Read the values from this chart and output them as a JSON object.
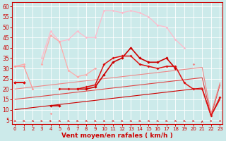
{
  "background_color": "#cceaea",
  "grid_color": "#ffffff",
  "xlabel": "Vent moyen/en rafales ( km/h )",
  "ylabel_ticks": [
    5,
    10,
    15,
    20,
    25,
    30,
    35,
    40,
    45,
    50,
    55,
    60
  ],
  "xlim": [
    -0.3,
    23.3
  ],
  "ylim": [
    3,
    62
  ],
  "x": [
    0,
    1,
    2,
    3,
    4,
    5,
    6,
    7,
    8,
    9,
    10,
    11,
    12,
    13,
    14,
    15,
    16,
    17,
    18,
    19,
    20,
    21,
    22,
    23
  ],
  "series": [
    {
      "y": [
        null,
        null,
        null,
        35,
        48,
        43,
        44,
        48,
        45,
        45,
        58,
        58,
        57,
        58,
        57,
        55,
        51,
        50,
        44,
        40,
        null,
        null,
        null,
        null
      ],
      "color": "#ffbbcc",
      "lw": 0.9,
      "marker": "D",
      "ms": 1.8,
      "zorder": 2
    },
    {
      "y": [
        31,
        32,
        null,
        32,
        46,
        43,
        29,
        26,
        27,
        30,
        null,
        null,
        null,
        null,
        null,
        null,
        null,
        null,
        null,
        null,
        null,
        null,
        null,
        null
      ],
      "color": "#ffaaaa",
      "lw": 0.9,
      "marker": "D",
      "ms": 1.8,
      "zorder": 2
    },
    {
      "y": [
        31,
        31,
        20,
        null,
        8,
        null,
        null,
        null,
        null,
        null,
        null,
        null,
        null,
        null,
        null,
        null,
        null,
        null,
        null,
        null,
        null,
        null,
        null,
        null
      ],
      "color": "#ff9999",
      "lw": 0.9,
      "marker": "D",
      "ms": 1.8,
      "zorder": 2
    },
    {
      "y": [
        23,
        23,
        null,
        null,
        null,
        null,
        null,
        null,
        null,
        null,
        null,
        null,
        null,
        null,
        null,
        null,
        null,
        null,
        null,
        null,
        32,
        null,
        null,
        null
      ],
      "color": "#ee8888",
      "lw": 0.9,
      "marker": "D",
      "ms": 1.8,
      "zorder": 2
    },
    {
      "y": [
        23,
        23,
        null,
        null,
        12,
        12,
        null,
        20,
        20,
        21,
        27,
        33,
        35,
        40,
        35,
        33,
        33,
        35,
        30,
        null,
        null,
        null,
        null,
        null
      ],
      "color": "#cc0000",
      "lw": 1.2,
      "marker": "D",
      "ms": 2.2,
      "zorder": 4
    },
    {
      "y": [
        23,
        23,
        null,
        null,
        null,
        20,
        20,
        20,
        21,
        22,
        32,
        35,
        36,
        36,
        32,
        31,
        30,
        31,
        31,
        23,
        20,
        20,
        7,
        16
      ],
      "color": "#dd1111",
      "lw": 1.1,
      "marker": "D",
      "ms": 2.0,
      "zorder": 4
    },
    {
      "y": [
        10,
        10.5,
        11,
        11.5,
        12,
        12.5,
        13,
        13.5,
        14,
        14.5,
        15,
        15.5,
        16,
        16.5,
        17,
        17.5,
        18,
        18.5,
        19,
        19.5,
        20,
        20.5,
        7,
        15
      ],
      "color": "#cc0000",
      "lw": 0.8,
      "marker": null,
      "ms": 0,
      "zorder": 3
    },
    {
      "y": [
        15,
        15.5,
        16,
        16.5,
        17,
        17.5,
        18,
        18.5,
        19,
        19.5,
        20,
        20.5,
        21,
        21.5,
        22,
        22.5,
        23,
        23.5,
        24,
        24.5,
        25,
        25.5,
        7,
        22
      ],
      "color": "#dd4444",
      "lw": 0.8,
      "marker": null,
      "ms": 0,
      "zorder": 3
    },
    {
      "y": [
        20,
        20.5,
        21,
        21.5,
        22,
        22.5,
        23,
        23.5,
        24,
        24.5,
        25,
        25.5,
        26,
        26.5,
        27,
        27.5,
        28,
        28.5,
        29,
        29.5,
        30,
        30.5,
        8,
        23
      ],
      "color": "#ee8888",
      "lw": 0.8,
      "marker": null,
      "ms": 0,
      "zorder": 3
    }
  ],
  "arrow_angles_deg": [
    225,
    225,
    225,
    210,
    200,
    225,
    225,
    225,
    225,
    225,
    225,
    225,
    225,
    225,
    225,
    225,
    225,
    225,
    225,
    225,
    225,
    90,
    150,
    30
  ],
  "xtick_fontsize": 5.0,
  "ytick_fontsize": 5.5,
  "xlabel_fontsize": 6.5,
  "label_color": "#cc0000"
}
